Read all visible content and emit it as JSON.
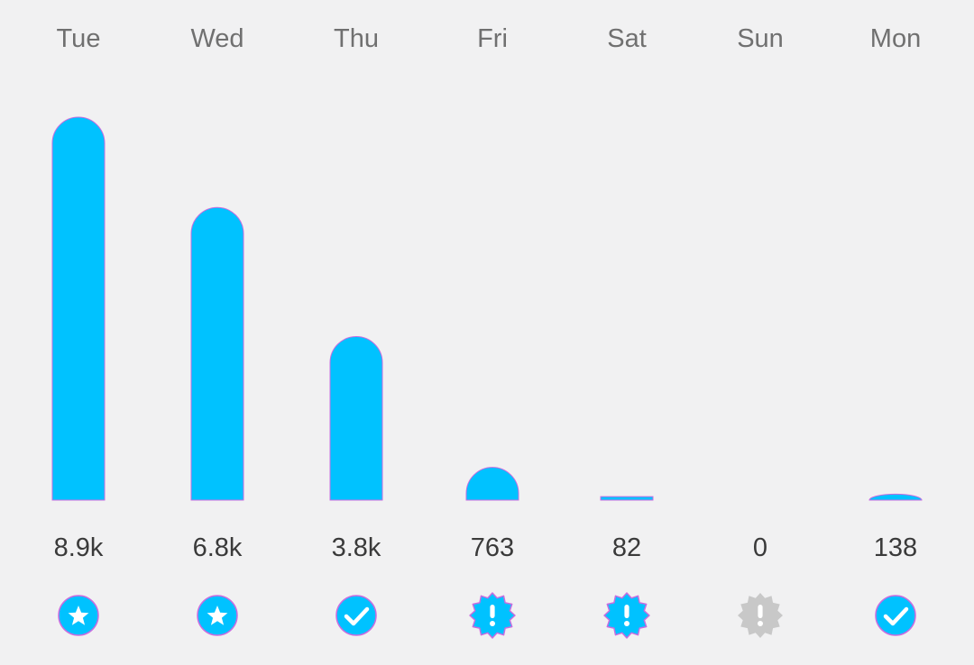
{
  "colors": {
    "bar": "#00c2ff",
    "bar_outline": "#c86de0",
    "inactive": "#c8c8c8",
    "background": "#f1f1f2"
  },
  "chart_data": {
    "type": "bar",
    "categories": [
      "Tue",
      "Wed",
      "Thu",
      "Fri",
      "Sat",
      "Sun",
      "Mon"
    ],
    "values": [
      8900,
      6800,
      3800,
      763,
      82,
      0,
      138
    ],
    "value_labels": [
      "8.9k",
      "6.8k",
      "3.8k",
      "763",
      "82",
      "0",
      "138"
    ],
    "status_icons": [
      "star-badge-icon",
      "star-badge-icon",
      "check-badge-icon",
      "alert-badge-icon",
      "alert-badge-icon",
      "alert-badge-icon",
      "check-badge-icon"
    ],
    "icon_active": [
      true,
      true,
      true,
      true,
      true,
      false,
      true
    ],
    "title": "",
    "xlabel": "",
    "ylabel": "",
    "ylim": [
      0,
      8900
    ],
    "grid": false,
    "legend": "none"
  }
}
